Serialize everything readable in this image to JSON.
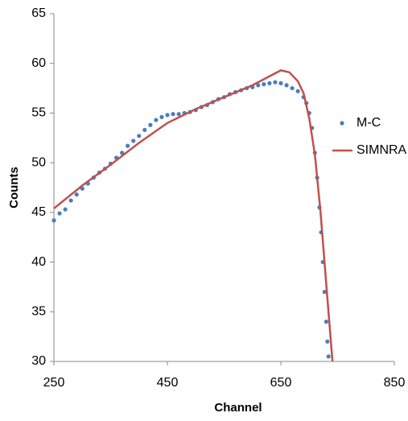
{
  "chart_data": {
    "type": "scatter",
    "xlabel": "Channel",
    "ylabel": "Counts",
    "xlim": [
      250,
      850
    ],
    "xticks": [
      250,
      450,
      650,
      850
    ],
    "ylim": [
      30,
      65
    ],
    "yticks": [
      30,
      35,
      40,
      45,
      50,
      55,
      60,
      65
    ],
    "legend": "right",
    "series": [
      {
        "name": "M-C",
        "type": "scatter",
        "color": "#4a7ebb",
        "x": [
          250,
          260,
          270,
          280,
          290,
          300,
          310,
          320,
          330,
          340,
          350,
          360,
          370,
          380,
          390,
          400,
          410,
          420,
          430,
          440,
          450,
          460,
          470,
          480,
          490,
          500,
          510,
          520,
          530,
          540,
          550,
          560,
          570,
          580,
          590,
          600,
          610,
          620,
          630,
          640,
          650,
          660,
          670,
          680,
          690,
          695,
          700,
          705,
          710,
          714,
          718,
          721,
          724,
          727,
          730,
          732,
          734
        ],
        "values": [
          44.2,
          44.9,
          45.3,
          46.2,
          46.8,
          47.4,
          47.9,
          48.5,
          49.0,
          49.4,
          49.9,
          50.5,
          51.0,
          51.7,
          52.2,
          52.7,
          53.3,
          53.8,
          54.3,
          54.6,
          54.8,
          54.9,
          54.9,
          55.0,
          55.1,
          55.3,
          55.6,
          55.8,
          56.1,
          56.4,
          56.6,
          56.9,
          57.1,
          57.3,
          57.5,
          57.6,
          57.8,
          57.9,
          58.0,
          58.1,
          58.0,
          57.8,
          57.5,
          57.2,
          56.6,
          56.0,
          55.0,
          53.5,
          51.0,
          48.5,
          45.5,
          43.0,
          40.0,
          37.0,
          34.0,
          32.0,
          30.5
        ]
      },
      {
        "name": "SIMNRA",
        "type": "line",
        "color": "#c0504d",
        "x": [
          250,
          300,
          350,
          400,
          450,
          500,
          550,
          600,
          630,
          650,
          665,
          680,
          690,
          700,
          710,
          720,
          730,
          741
        ],
        "values": [
          45.4,
          47.7,
          49.8,
          52.0,
          54.0,
          55.4,
          56.6,
          57.8,
          58.7,
          59.3,
          59.1,
          58.2,
          57.0,
          54.5,
          50.8,
          45.0,
          37.8,
          30.0
        ]
      }
    ]
  }
}
